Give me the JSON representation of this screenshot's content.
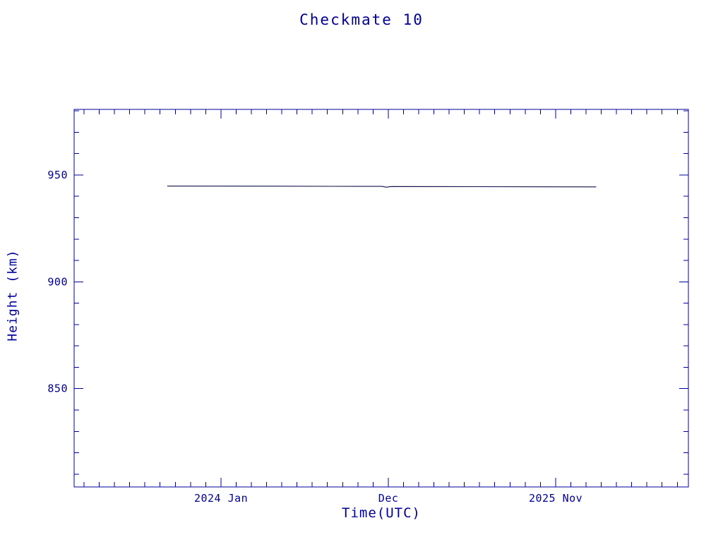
{
  "window": {
    "background": "#ffffff"
  },
  "chart_data": {
    "type": "line",
    "title": "Checkmate 10",
    "xlabel": "Time(UTC)",
    "ylabel": "Height (km)",
    "x_unit": "decimal_year",
    "xlim": [
      2023.195,
      2026.56
    ],
    "ylim": [
      804,
      980.7
    ],
    "grid": false,
    "legend": "none",
    "x_major_ticks": [
      {
        "value": 2024.0,
        "label": "2024 Jan"
      },
      {
        "value": 2024.9167,
        "label": "Dec"
      },
      {
        "value": 2025.8333,
        "label": "2025 Nov"
      }
    ],
    "x_minor_step": 0.0833333,
    "y_major_ticks": [
      {
        "value": 850,
        "label": "850"
      },
      {
        "value": 900,
        "label": "900"
      },
      {
        "value": 950,
        "label": "950"
      }
    ],
    "y_minor_step": 10,
    "series": [
      {
        "name": "height-km",
        "color": "#10104a",
        "points": [
          [
            2023.705,
            944.8
          ],
          [
            2024.3,
            944.75
          ],
          [
            2024.6,
            944.7
          ],
          [
            2024.88,
            944.65
          ],
          [
            2024.905,
            944.3
          ],
          [
            2024.935,
            944.6
          ],
          [
            2025.4,
            944.55
          ],
          [
            2026.055,
            944.45
          ]
        ]
      }
    ],
    "colors": {
      "axis": "#000098",
      "text": "#000098"
    }
  }
}
